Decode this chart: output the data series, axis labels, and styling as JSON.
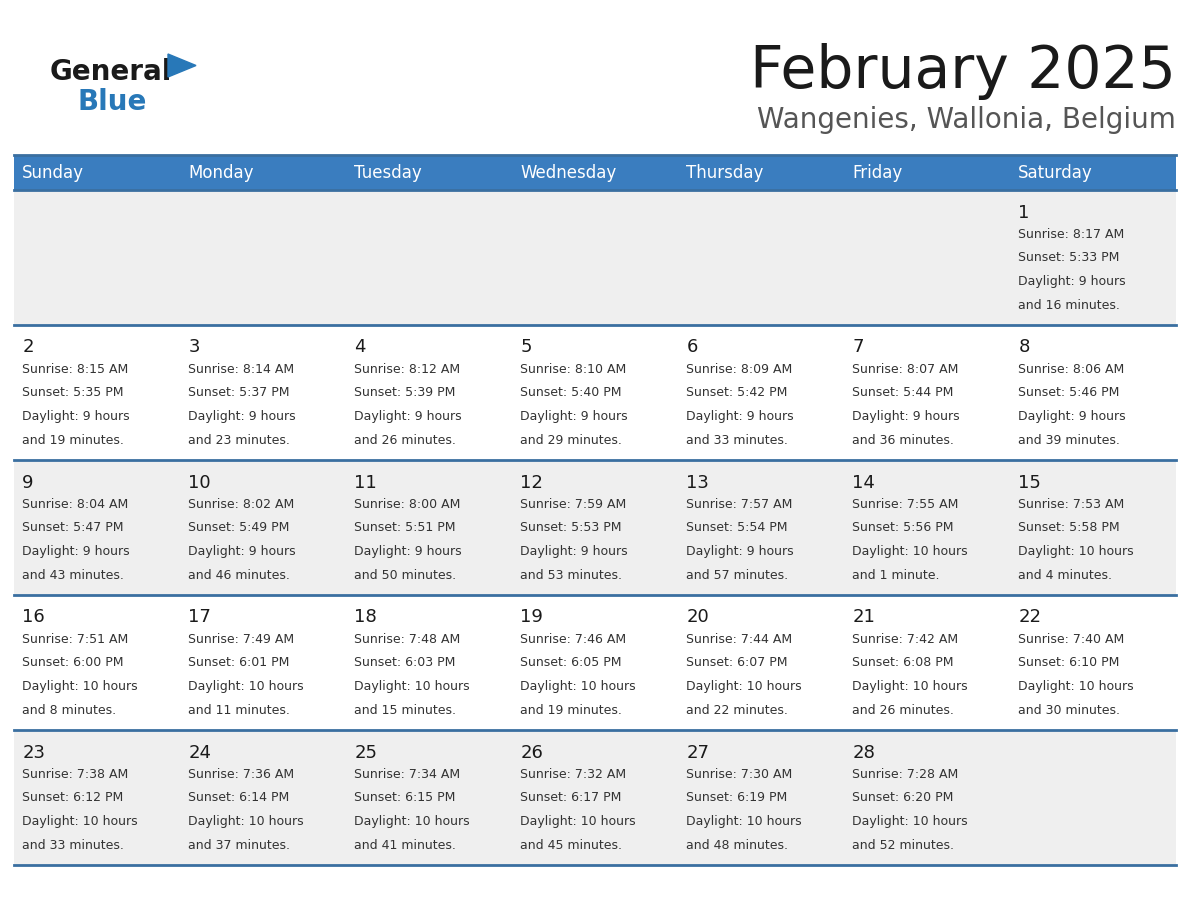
{
  "title": "February 2025",
  "subtitle": "Wangenies, Wallonia, Belgium",
  "days_of_week": [
    "Sunday",
    "Monday",
    "Tuesday",
    "Wednesday",
    "Thursday",
    "Friday",
    "Saturday"
  ],
  "header_bg": "#3a7dbf",
  "header_text": "#ffffff",
  "cell_bg_odd": "#efefef",
  "cell_bg_even": "#ffffff",
  "cell_text": "#333333",
  "day_num_color": "#1a1a1a",
  "title_color": "#1a1a1a",
  "subtitle_color": "#555555",
  "logo_general_color": "#1a1a1a",
  "logo_blue_color": "#2878b8",
  "grid_line_color": "#3a6fa0",
  "calendar": [
    [
      null,
      null,
      null,
      null,
      null,
      null,
      {
        "day": 1,
        "sunrise": "8:17 AM",
        "sunset": "5:33 PM",
        "daylight": "9 hours and 16 minutes."
      }
    ],
    [
      {
        "day": 2,
        "sunrise": "8:15 AM",
        "sunset": "5:35 PM",
        "daylight": "9 hours and 19 minutes."
      },
      {
        "day": 3,
        "sunrise": "8:14 AM",
        "sunset": "5:37 PM",
        "daylight": "9 hours and 23 minutes."
      },
      {
        "day": 4,
        "sunrise": "8:12 AM",
        "sunset": "5:39 PM",
        "daylight": "9 hours and 26 minutes."
      },
      {
        "day": 5,
        "sunrise": "8:10 AM",
        "sunset": "5:40 PM",
        "daylight": "9 hours and 29 minutes."
      },
      {
        "day": 6,
        "sunrise": "8:09 AM",
        "sunset": "5:42 PM",
        "daylight": "9 hours and 33 minutes."
      },
      {
        "day": 7,
        "sunrise": "8:07 AM",
        "sunset": "5:44 PM",
        "daylight": "9 hours and 36 minutes."
      },
      {
        "day": 8,
        "sunrise": "8:06 AM",
        "sunset": "5:46 PM",
        "daylight": "9 hours and 39 minutes."
      }
    ],
    [
      {
        "day": 9,
        "sunrise": "8:04 AM",
        "sunset": "5:47 PM",
        "daylight": "9 hours and 43 minutes."
      },
      {
        "day": 10,
        "sunrise": "8:02 AM",
        "sunset": "5:49 PM",
        "daylight": "9 hours and 46 minutes."
      },
      {
        "day": 11,
        "sunrise": "8:00 AM",
        "sunset": "5:51 PM",
        "daylight": "9 hours and 50 minutes."
      },
      {
        "day": 12,
        "sunrise": "7:59 AM",
        "sunset": "5:53 PM",
        "daylight": "9 hours and 53 minutes."
      },
      {
        "day": 13,
        "sunrise": "7:57 AM",
        "sunset": "5:54 PM",
        "daylight": "9 hours and 57 minutes."
      },
      {
        "day": 14,
        "sunrise": "7:55 AM",
        "sunset": "5:56 PM",
        "daylight": "10 hours and 1 minute."
      },
      {
        "day": 15,
        "sunrise": "7:53 AM",
        "sunset": "5:58 PM",
        "daylight": "10 hours and 4 minutes."
      }
    ],
    [
      {
        "day": 16,
        "sunrise": "7:51 AM",
        "sunset": "6:00 PM",
        "daylight": "10 hours and 8 minutes."
      },
      {
        "day": 17,
        "sunrise": "7:49 AM",
        "sunset": "6:01 PM",
        "daylight": "10 hours and 11 minutes."
      },
      {
        "day": 18,
        "sunrise": "7:48 AM",
        "sunset": "6:03 PM",
        "daylight": "10 hours and 15 minutes."
      },
      {
        "day": 19,
        "sunrise": "7:46 AM",
        "sunset": "6:05 PM",
        "daylight": "10 hours and 19 minutes."
      },
      {
        "day": 20,
        "sunrise": "7:44 AM",
        "sunset": "6:07 PM",
        "daylight": "10 hours and 22 minutes."
      },
      {
        "day": 21,
        "sunrise": "7:42 AM",
        "sunset": "6:08 PM",
        "daylight": "10 hours and 26 minutes."
      },
      {
        "day": 22,
        "sunrise": "7:40 AM",
        "sunset": "6:10 PM",
        "daylight": "10 hours and 30 minutes."
      }
    ],
    [
      {
        "day": 23,
        "sunrise": "7:38 AM",
        "sunset": "6:12 PM",
        "daylight": "10 hours and 33 minutes."
      },
      {
        "day": 24,
        "sunrise": "7:36 AM",
        "sunset": "6:14 PM",
        "daylight": "10 hours and 37 minutes."
      },
      {
        "day": 25,
        "sunrise": "7:34 AM",
        "sunset": "6:15 PM",
        "daylight": "10 hours and 41 minutes."
      },
      {
        "day": 26,
        "sunrise": "7:32 AM",
        "sunset": "6:17 PM",
        "daylight": "10 hours and 45 minutes."
      },
      {
        "day": 27,
        "sunrise": "7:30 AM",
        "sunset": "6:19 PM",
        "daylight": "10 hours and 48 minutes."
      },
      {
        "day": 28,
        "sunrise": "7:28 AM",
        "sunset": "6:20 PM",
        "daylight": "10 hours and 52 minutes."
      },
      null
    ]
  ]
}
